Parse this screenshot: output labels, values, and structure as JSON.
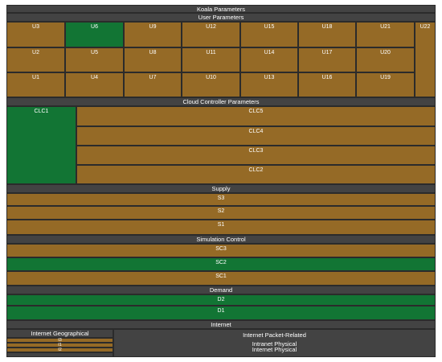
{
  "colors": {
    "brown": "#956a26",
    "green": "#127534",
    "dark": "#434343",
    "line": "#2b2b2b"
  },
  "title": "Koala Parameters",
  "user_parameters": {
    "title": "User Parameters",
    "rows": [
      [
        {
          "label": "U3",
          "color": "brown"
        },
        {
          "label": "U6",
          "color": "green"
        },
        {
          "label": "U9",
          "color": "brown"
        },
        {
          "label": "U12",
          "color": "brown"
        },
        {
          "label": "U15",
          "color": "brown"
        },
        {
          "label": "U18",
          "color": "brown"
        },
        {
          "label": "U21",
          "color": "brown"
        }
      ],
      [
        {
          "label": "U2",
          "color": "brown"
        },
        {
          "label": "U5",
          "color": "brown"
        },
        {
          "label": "U8",
          "color": "brown"
        },
        {
          "label": "U11",
          "color": "brown"
        },
        {
          "label": "U14",
          "color": "brown"
        },
        {
          "label": "U17",
          "color": "brown"
        },
        {
          "label": "U20",
          "color": "brown"
        }
      ],
      [
        {
          "label": "U1",
          "color": "brown"
        },
        {
          "label": "U4",
          "color": "brown"
        },
        {
          "label": "U7",
          "color": "brown"
        },
        {
          "label": "U10",
          "color": "brown"
        },
        {
          "label": "U13",
          "color": "brown"
        },
        {
          "label": "U16",
          "color": "brown"
        },
        {
          "label": "U19",
          "color": "brown"
        }
      ]
    ],
    "side": {
      "label": "U22",
      "color": "brown"
    }
  },
  "cloud_controller": {
    "title": "Cloud Controller Parameters",
    "left": {
      "label": "CLC1",
      "color": "green"
    },
    "rows": [
      {
        "label": "CLC5",
        "color": "brown"
      },
      {
        "label": "CLC4",
        "color": "brown"
      },
      {
        "label": "CLC3",
        "color": "brown"
      },
      {
        "label": "CLC2",
        "color": "brown"
      }
    ]
  },
  "supply": {
    "title": "Supply",
    "rows": [
      {
        "label": "S3",
        "color": "brown"
      },
      {
        "label": "S2",
        "color": "brown"
      },
      {
        "label": "S1",
        "color": "brown"
      }
    ]
  },
  "simulation_control": {
    "title": "Simulation Control",
    "rows": [
      {
        "label": "SC3",
        "color": "brown"
      },
      {
        "label": "SC2",
        "color": "green"
      },
      {
        "label": "SC1",
        "color": "brown"
      }
    ]
  },
  "demand": {
    "title": "Demand",
    "rows": [
      {
        "label": "D2",
        "color": "green"
      },
      {
        "label": "D1",
        "color": "green"
      }
    ]
  },
  "internet": {
    "title": "Internet",
    "geographical": {
      "title": "Internet Geographical",
      "rows": [
        {
          "label": "I3",
          "color": "brown"
        },
        {
          "label": "I1",
          "color": "brown"
        },
        {
          "label": "I2",
          "color": "brown"
        }
      ]
    },
    "packet": {
      "title": "Internet Packet-Related",
      "items": [
        "Intranet Physical",
        "Internet Physical"
      ]
    }
  }
}
